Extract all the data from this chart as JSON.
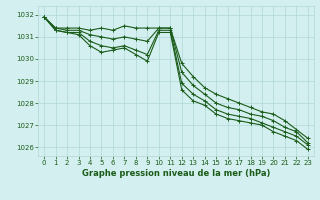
{
  "title": "Graphe pression niveau de la mer (hPa)",
  "bg_color": "#d4efef",
  "grid_color": "#b0d8d8",
  "line_color": "#1a5c1a",
  "x_ticks": [
    0,
    1,
    2,
    3,
    4,
    5,
    6,
    7,
    8,
    9,
    10,
    11,
    12,
    13,
    14,
    15,
    16,
    17,
    18,
    19,
    20,
    21,
    22,
    23
  ],
  "ylim": [
    1025.6,
    1032.4
  ],
  "yticks": [
    1026,
    1027,
    1028,
    1029,
    1030,
    1031,
    1032
  ],
  "series": [
    [
      1031.9,
      1031.4,
      1031.4,
      1031.4,
      1031.3,
      1031.4,
      1031.3,
      1031.5,
      1031.4,
      1031.4,
      1031.4,
      1031.4,
      1029.8,
      1029.2,
      1028.7,
      1028.4,
      1028.2,
      1028.0,
      1027.8,
      1027.6,
      1027.5,
      1027.2,
      1026.8,
      1026.4
    ],
    [
      1031.9,
      1031.4,
      1031.3,
      1031.3,
      1031.1,
      1031.0,
      1030.9,
      1031.0,
      1030.9,
      1030.8,
      1031.4,
      1031.4,
      1029.4,
      1028.8,
      1028.4,
      1028.0,
      1027.8,
      1027.7,
      1027.5,
      1027.4,
      1027.2,
      1026.9,
      1026.7,
      1026.2
    ],
    [
      1031.9,
      1031.3,
      1031.2,
      1031.2,
      1030.8,
      1030.6,
      1030.5,
      1030.6,
      1030.4,
      1030.2,
      1031.3,
      1031.3,
      1028.9,
      1028.4,
      1028.1,
      1027.7,
      1027.5,
      1027.4,
      1027.3,
      1027.1,
      1026.9,
      1026.7,
      1026.5,
      1026.1
    ],
    [
      1031.9,
      1031.3,
      1031.2,
      1031.1,
      1030.6,
      1030.3,
      1030.4,
      1030.5,
      1030.2,
      1029.9,
      1031.2,
      1031.2,
      1028.6,
      1028.1,
      1027.9,
      1027.5,
      1027.3,
      1027.2,
      1027.1,
      1027.0,
      1026.7,
      1026.5,
      1026.3,
      1025.9
    ]
  ],
  "marker": "+",
  "markersize": 3.5,
  "linewidth": 0.8,
  "title_fontsize": 6,
  "tick_fontsize": 5,
  "xlabel_fontsize": 5
}
